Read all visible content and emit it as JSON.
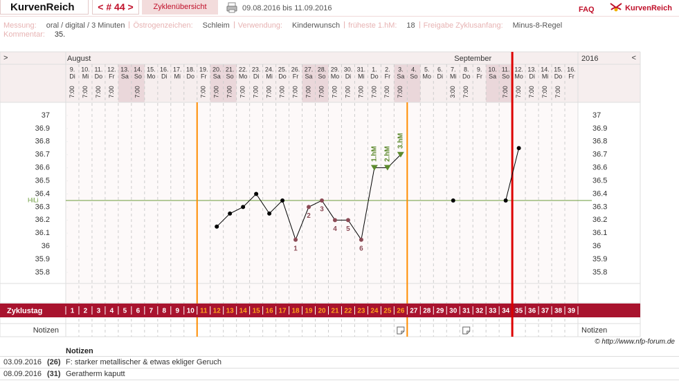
{
  "header": {
    "title": "KurvenReich",
    "cycle_nav": "< # 44 >",
    "tab": "Zyklenübersicht",
    "date_range": "09.08.2016 bis 11.09.2016",
    "faq": "FAQ",
    "logo": "KurvenReich"
  },
  "info": {
    "fields": [
      {
        "label": "Messung:",
        "value": "oral / digital / 3 Minuten"
      },
      {
        "label": "Östrogenzeichen:",
        "value": "Schleim"
      },
      {
        "label": "Verwendung:",
        "value": "Kinderwunsch"
      },
      {
        "label": "früheste 1.hM:",
        "value": "18"
      },
      {
        "label": "Freigabe Zyklusanfang:",
        "value": "Minus-8-Regel"
      }
    ],
    "comment_label": "Kommentar:",
    "comment": "35."
  },
  "chart_data": {
    "type": "line",
    "nav_left": ">",
    "nav_right": "<",
    "year": "2016",
    "months": [
      "August",
      "September"
    ],
    "dates": [
      "9.",
      "10.",
      "11.",
      "12.",
      "13.",
      "14.",
      "15.",
      "16.",
      "17.",
      "18.",
      "19.",
      "20.",
      "21.",
      "22.",
      "23.",
      "24.",
      "25.",
      "26.",
      "27.",
      "28.",
      "29.",
      "30.",
      "31.",
      "1.",
      "2.",
      "3.",
      "4.",
      "5.",
      "6.",
      "7.",
      "8.",
      "9.",
      "10.",
      "11.",
      "12.",
      "13.",
      "14.",
      "15.",
      "16."
    ],
    "weekdays": [
      "Di",
      "Mi",
      "Do",
      "Fr",
      "Sa",
      "So",
      "Mo",
      "Di",
      "Mi",
      "Do",
      "Fr",
      "Sa",
      "So",
      "Mo",
      "Di",
      "Mi",
      "Do",
      "Fr",
      "Sa",
      "So",
      "Mo",
      "Di",
      "Mi",
      "Do",
      "Fr",
      "Sa",
      "So",
      "Mo",
      "Di",
      "Mi",
      "Do",
      "Fr",
      "Sa",
      "So",
      "Mo",
      "Di",
      "Mi",
      "Do",
      "Fr"
    ],
    "shaded_weekdays": [
      "Sa",
      "So"
    ],
    "times": [
      "7:00",
      "7:00",
      "7:00",
      "7:00",
      null,
      "7:00",
      null,
      null,
      null,
      null,
      "7:00",
      "7:00",
      "7:00",
      "7:00",
      "7:00",
      "7:00",
      "7:00",
      "7:00",
      "7:00",
      "7:00",
      "7:00",
      "7:00",
      "7:00",
      "7:00",
      "7:00",
      "7:00",
      null,
      null,
      null,
      "3:00",
      "7:00",
      null,
      null,
      "7:00",
      "7:00",
      "7:00",
      "7:00",
      "7:00",
      null
    ],
    "cycle_day_label": "Zyklustag",
    "cycle_days": [
      1,
      2,
      3,
      4,
      5,
      6,
      7,
      8,
      9,
      10,
      11,
      12,
      13,
      14,
      15,
      16,
      17,
      18,
      19,
      20,
      21,
      22,
      23,
      24,
      25,
      26,
      27,
      28,
      29,
      30,
      31,
      32,
      33,
      34,
      35,
      36,
      37,
      38,
      39
    ],
    "notes_label": "Notizen",
    "values": [
      null,
      null,
      null,
      null,
      null,
      null,
      null,
      null,
      null,
      null,
      null,
      36.15,
      36.25,
      36.3,
      36.4,
      36.25,
      36.35,
      36.05,
      36.3,
      36.35,
      36.2,
      36.2,
      36.05,
      36.6,
      36.6,
      36.7,
      null,
      null,
      null,
      36.35,
      null,
      null,
      null,
      36.35,
      36.75,
      null,
      null,
      null,
      null
    ],
    "labels_below": [
      null,
      null,
      null,
      null,
      null,
      null,
      null,
      null,
      null,
      null,
      null,
      null,
      null,
      null,
      null,
      null,
      null,
      "1",
      "2",
      "3",
      "4",
      "5",
      "6",
      null,
      null,
      null,
      null,
      null,
      null,
      null,
      null,
      null,
      null,
      null,
      null,
      null,
      null,
      null,
      null
    ],
    "labels_above": [
      null,
      null,
      null,
      null,
      null,
      null,
      null,
      null,
      null,
      null,
      null,
      null,
      null,
      null,
      null,
      null,
      null,
      null,
      null,
      null,
      null,
      null,
      null,
      "1.hM",
      "2.hM",
      "3.hM",
      null,
      null,
      null,
      null,
      null,
      null,
      null,
      null,
      null,
      null,
      null,
      null,
      null
    ],
    "color": "#000000",
    "below_color": "#8b4a55",
    "above_color": "#5d8a2e",
    "ylim": [
      35.8,
      37
    ],
    "yticks": [
      35.8,
      35.9,
      36,
      36.1,
      36.2,
      36.3,
      36.4,
      36.5,
      36.6,
      36.7,
      36.8,
      36.9,
      37
    ],
    "hili": {
      "label": "HiLi",
      "value": 36.35,
      "color": "#6a9a3a"
    },
    "fertile_window": {
      "start": 11,
      "end": 26,
      "color": "#ff8c00"
    },
    "cycle_end": {
      "next_start": 35,
      "color": "#dd0000"
    },
    "grid": true
  },
  "credit": "© http://www.nfp-forum.de",
  "notes": {
    "title": "Notizen",
    "rows": [
      {
        "date": "03.09.2016",
        "cycle_day": {
          "value": 26,
          "label": "(26)"
        },
        "text": "F: starker metallischer & etwas ekliger Geruch"
      },
      {
        "date": "08.09.2016",
        "cycle_day": {
          "value": 31,
          "label": "(31)"
        },
        "text": "Geratherm kaputt"
      }
    ]
  }
}
